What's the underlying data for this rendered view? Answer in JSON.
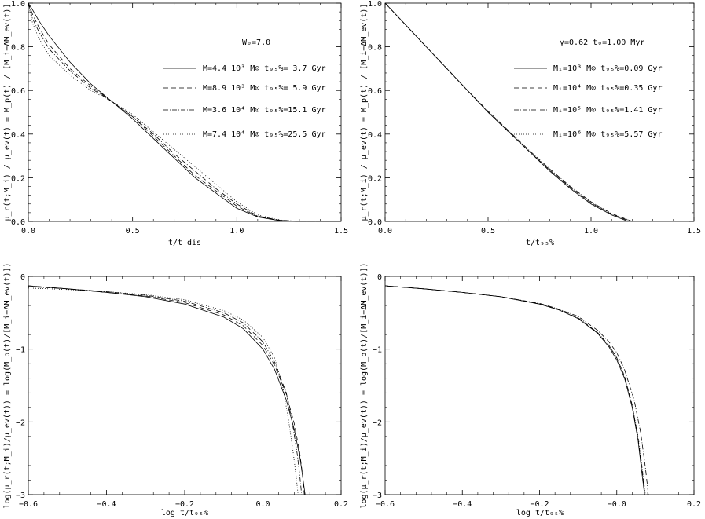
{
  "chart_data": [
    {
      "id": "tl",
      "type": "line",
      "xlabel": "t/t_dis",
      "ylabel": "μ_r(t;M_i) / μ_ev(t) = M_p(t) / [M_i−ΔM_ev(t)]",
      "xlim": [
        0.0,
        1.5
      ],
      "ylim": [
        0.0,
        1.0
      ],
      "xticks": [
        "0.0",
        "0.5",
        "1.0",
        "1.5"
      ],
      "yticks": [
        "0.0",
        "0.2",
        "0.4",
        "0.6",
        "0.8",
        "1.0"
      ],
      "annotation": "W₀=7.0",
      "legend": [
        "M=4.4 10³ M⊙   t₉₅%= 3.7 Gyr",
        "M=8.9 10³ M⊙   t₉₅%= 5.9 Gyr",
        "M=3.6 10⁴ M⊙   t₉₅%=15.1 Gyr",
        "M=7.4 10⁴ M⊙   t₉₅%=25.5 Gyr"
      ],
      "series": [
        {
          "name": "M=4.4 10³ M⊙",
          "x": [
            0.0,
            0.02,
            0.05,
            0.1,
            0.2,
            0.3,
            0.4,
            0.5,
            0.6,
            0.7,
            0.8,
            0.9,
            1.0,
            1.1,
            1.2,
            1.3,
            1.5
          ],
          "y": [
            1.0,
            0.97,
            0.92,
            0.85,
            0.73,
            0.63,
            0.55,
            0.47,
            0.38,
            0.29,
            0.2,
            0.13,
            0.06,
            0.02,
            0.004,
            0.0,
            0.0
          ]
        },
        {
          "name": "M=8.9 10³ M⊙",
          "x": [
            0.0,
            0.02,
            0.05,
            0.1,
            0.2,
            0.3,
            0.4,
            0.5,
            0.6,
            0.7,
            0.8,
            0.9,
            1.0,
            1.1,
            1.2,
            1.3,
            1.5
          ],
          "y": [
            1.0,
            0.95,
            0.89,
            0.81,
            0.7,
            0.62,
            0.55,
            0.48,
            0.39,
            0.3,
            0.21,
            0.14,
            0.07,
            0.022,
            0.005,
            0.0,
            0.0
          ]
        },
        {
          "name": "M=3.6 10⁴ M⊙",
          "x": [
            0.0,
            0.02,
            0.05,
            0.1,
            0.2,
            0.3,
            0.4,
            0.5,
            0.6,
            0.7,
            0.8,
            0.9,
            1.0,
            1.1,
            1.2,
            1.3,
            1.5
          ],
          "y": [
            1.0,
            0.93,
            0.87,
            0.79,
            0.69,
            0.61,
            0.55,
            0.48,
            0.4,
            0.31,
            0.23,
            0.15,
            0.08,
            0.025,
            0.006,
            0.0,
            0.0
          ]
        },
        {
          "name": "M=7.4 10⁴ M⊙",
          "x": [
            0.0,
            0.02,
            0.05,
            0.1,
            0.2,
            0.3,
            0.4,
            0.5,
            0.6,
            0.7,
            0.8,
            0.9,
            1.0,
            1.1,
            1.2,
            1.3,
            1.5
          ],
          "y": [
            1.0,
            0.91,
            0.84,
            0.76,
            0.67,
            0.6,
            0.55,
            0.49,
            0.41,
            0.33,
            0.25,
            0.17,
            0.09,
            0.03,
            0.007,
            0.0,
            0.0
          ]
        }
      ]
    },
    {
      "id": "tr",
      "type": "line",
      "xlabel": "t/t₉₅%",
      "ylabel": "μ_r(t;M_i) / μ_ev(t) = M_p(t) / [M_i−ΔM_ev(t)]",
      "xlim": [
        0.0,
        1.5
      ],
      "ylim": [
        0.0,
        1.0
      ],
      "xticks": [
        "0.0",
        "0.5",
        "1.0",
        "1.5"
      ],
      "yticks": [
        "0.0",
        "0.2",
        "0.4",
        "0.6",
        "0.8",
        "1.0"
      ],
      "annotation": "γ=0.62      t₀=1.00 Myr",
      "legend": [
        "Mᵢ=10³ M⊙   t₉₅%=0.09 Gyr",
        "Mᵢ=10⁴ M⊙   t₉₅%=0.35 Gyr",
        "Mᵢ=10⁵ M⊙   t₉₅%=1.41 Gyr",
        "Mᵢ=10⁶ M⊙   t₉₅%=5.57 Gyr"
      ],
      "series": [
        {
          "name": "Mᵢ=10³ M⊙",
          "x": [
            0.0,
            0.1,
            0.2,
            0.3,
            0.4,
            0.5,
            0.6,
            0.7,
            0.8,
            0.9,
            1.0,
            1.1,
            1.18
          ],
          "y": [
            1.0,
            0.9,
            0.8,
            0.7,
            0.6,
            0.5,
            0.41,
            0.32,
            0.23,
            0.15,
            0.08,
            0.03,
            0.0
          ]
        },
        {
          "name": "Mᵢ=10⁴ M⊙",
          "x": [
            0.0,
            0.1,
            0.2,
            0.3,
            0.4,
            0.5,
            0.6,
            0.7,
            0.8,
            0.9,
            1.0,
            1.1,
            1.19
          ],
          "y": [
            1.0,
            0.9,
            0.8,
            0.7,
            0.6,
            0.5,
            0.41,
            0.32,
            0.235,
            0.155,
            0.085,
            0.033,
            0.0
          ]
        },
        {
          "name": "Mᵢ=10⁵ M⊙",
          "x": [
            0.0,
            0.1,
            0.2,
            0.3,
            0.4,
            0.5,
            0.6,
            0.7,
            0.8,
            0.9,
            1.0,
            1.1,
            1.2
          ],
          "y": [
            1.0,
            0.9,
            0.8,
            0.7,
            0.6,
            0.505,
            0.415,
            0.325,
            0.24,
            0.16,
            0.09,
            0.036,
            0.0
          ]
        },
        {
          "name": "Mᵢ=10⁶ M⊙",
          "x": [
            0.0,
            0.1,
            0.2,
            0.3,
            0.4,
            0.5,
            0.6,
            0.7,
            0.8,
            0.9,
            1.0,
            1.1,
            1.2
          ],
          "y": [
            1.0,
            0.9,
            0.8,
            0.7,
            0.6,
            0.5,
            0.41,
            0.32,
            0.235,
            0.155,
            0.085,
            0.034,
            0.0
          ]
        }
      ]
    },
    {
      "id": "bl",
      "type": "line",
      "xlabel": "log t/t₉₅%",
      "ylabel": "log(μ_r(t;M_i)/μ_ev(t)) = log(M_p(t)/[M_i−ΔM_ev(t)])",
      "xlim": [
        -0.6,
        0.2
      ],
      "ylim": [
        -3.0,
        0.0
      ],
      "xticks": [
        "−0.6",
        "−0.4",
        "−0.2",
        "0.0",
        "0.2"
      ],
      "yticks": [
        "−3",
        "−2",
        "−1",
        "0"
      ],
      "series": [
        {
          "name": "M=4.4 10³ M⊙",
          "x": [
            -0.6,
            -0.5,
            -0.4,
            -0.3,
            -0.2,
            -0.1,
            -0.05,
            0.0,
            0.03,
            0.06,
            0.08,
            0.095,
            0.103,
            0.108
          ],
          "y": [
            -0.13,
            -0.17,
            -0.22,
            -0.28,
            -0.38,
            -0.56,
            -0.72,
            -1.0,
            -1.28,
            -1.7,
            -2.1,
            -2.5,
            -2.8,
            -3.0
          ]
        },
        {
          "name": "M=8.9 10³ M⊙",
          "x": [
            -0.6,
            -0.5,
            -0.4,
            -0.3,
            -0.2,
            -0.1,
            -0.05,
            0.0,
            0.03,
            0.06,
            0.08,
            0.094,
            0.102,
            0.106
          ],
          "y": [
            -0.13,
            -0.17,
            -0.22,
            -0.27,
            -0.36,
            -0.53,
            -0.68,
            -0.95,
            -1.22,
            -1.62,
            -2.02,
            -2.42,
            -2.75,
            -3.0
          ]
        },
        {
          "name": "M=3.6 10⁴ M⊙",
          "x": [
            -0.6,
            -0.5,
            -0.4,
            -0.3,
            -0.2,
            -0.1,
            -0.05,
            0.0,
            0.03,
            0.06,
            0.075,
            0.088,
            0.095,
            0.099
          ],
          "y": [
            -0.14,
            -0.17,
            -0.21,
            -0.26,
            -0.34,
            -0.5,
            -0.64,
            -0.9,
            -1.18,
            -1.6,
            -2.0,
            -2.45,
            -2.78,
            -3.0
          ]
        },
        {
          "name": "M=7.4 10⁴ M⊙",
          "x": [
            -0.6,
            -0.5,
            -0.4,
            -0.3,
            -0.2,
            -0.1,
            -0.05,
            0.0,
            0.03,
            0.05,
            0.065,
            0.077,
            0.085,
            0.09
          ],
          "y": [
            -0.16,
            -0.18,
            -0.21,
            -0.25,
            -0.32,
            -0.47,
            -0.6,
            -0.84,
            -1.12,
            -1.5,
            -1.95,
            -2.4,
            -2.75,
            -3.0
          ]
        }
      ]
    },
    {
      "id": "br",
      "type": "line",
      "xlabel": "log t/t₉₅%",
      "ylabel": "log(μ_r(t;M_i)/μ_ev(t)) = log(M_p(t)/[M_i−ΔM_ev(t)])",
      "xlim": [
        -0.6,
        0.2
      ],
      "ylim": [
        -3.0,
        0.0
      ],
      "xticks": [
        "−0.6",
        "−0.4",
        "−0.2",
        "−0.0",
        "0.2"
      ],
      "yticks": [
        "−3",
        "−2",
        "−1",
        "0"
      ],
      "series": [
        {
          "name": "Mᵢ=10³ M⊙",
          "x": [
            -0.6,
            -0.5,
            -0.4,
            -0.3,
            -0.2,
            -0.15,
            -0.1,
            -0.05,
            -0.02,
            0.0,
            0.02,
            0.04,
            0.055,
            0.065,
            0.072
          ],
          "y": [
            -0.13,
            -0.17,
            -0.22,
            -0.28,
            -0.38,
            -0.46,
            -0.58,
            -0.78,
            -0.97,
            -1.15,
            -1.4,
            -1.8,
            -2.25,
            -2.7,
            -3.0
          ]
        },
        {
          "name": "Mᵢ=10⁴ M⊙",
          "x": [
            -0.6,
            -0.5,
            -0.4,
            -0.3,
            -0.2,
            -0.15,
            -0.1,
            -0.05,
            -0.02,
            0.0,
            0.02,
            0.04,
            0.055,
            0.066,
            0.073
          ],
          "y": [
            -0.13,
            -0.17,
            -0.22,
            -0.28,
            -0.38,
            -0.46,
            -0.57,
            -0.77,
            -0.95,
            -1.12,
            -1.37,
            -1.77,
            -2.22,
            -2.68,
            -3.0
          ]
        },
        {
          "name": "Mᵢ=10⁵ M⊙",
          "x": [
            -0.6,
            -0.5,
            -0.4,
            -0.3,
            -0.2,
            -0.15,
            -0.1,
            -0.05,
            -0.02,
            0.0,
            0.02,
            0.045,
            0.062,
            0.074,
            0.082
          ],
          "y": [
            -0.13,
            -0.17,
            -0.22,
            -0.28,
            -0.37,
            -0.45,
            -0.55,
            -0.74,
            -0.9,
            -1.05,
            -1.28,
            -1.7,
            -2.15,
            -2.62,
            -3.0
          ]
        },
        {
          "name": "Mᵢ=10⁶ M⊙",
          "x": [
            -0.6,
            -0.5,
            -0.4,
            -0.3,
            -0.2,
            -0.15,
            -0.1,
            -0.05,
            -0.02,
            0.0,
            0.02,
            0.04,
            0.056,
            0.067,
            0.074
          ],
          "y": [
            -0.13,
            -0.17,
            -0.22,
            -0.28,
            -0.38,
            -0.46,
            -0.57,
            -0.77,
            -0.95,
            -1.12,
            -1.37,
            -1.77,
            -2.22,
            -2.68,
            -3.0
          ]
        }
      ]
    }
  ]
}
